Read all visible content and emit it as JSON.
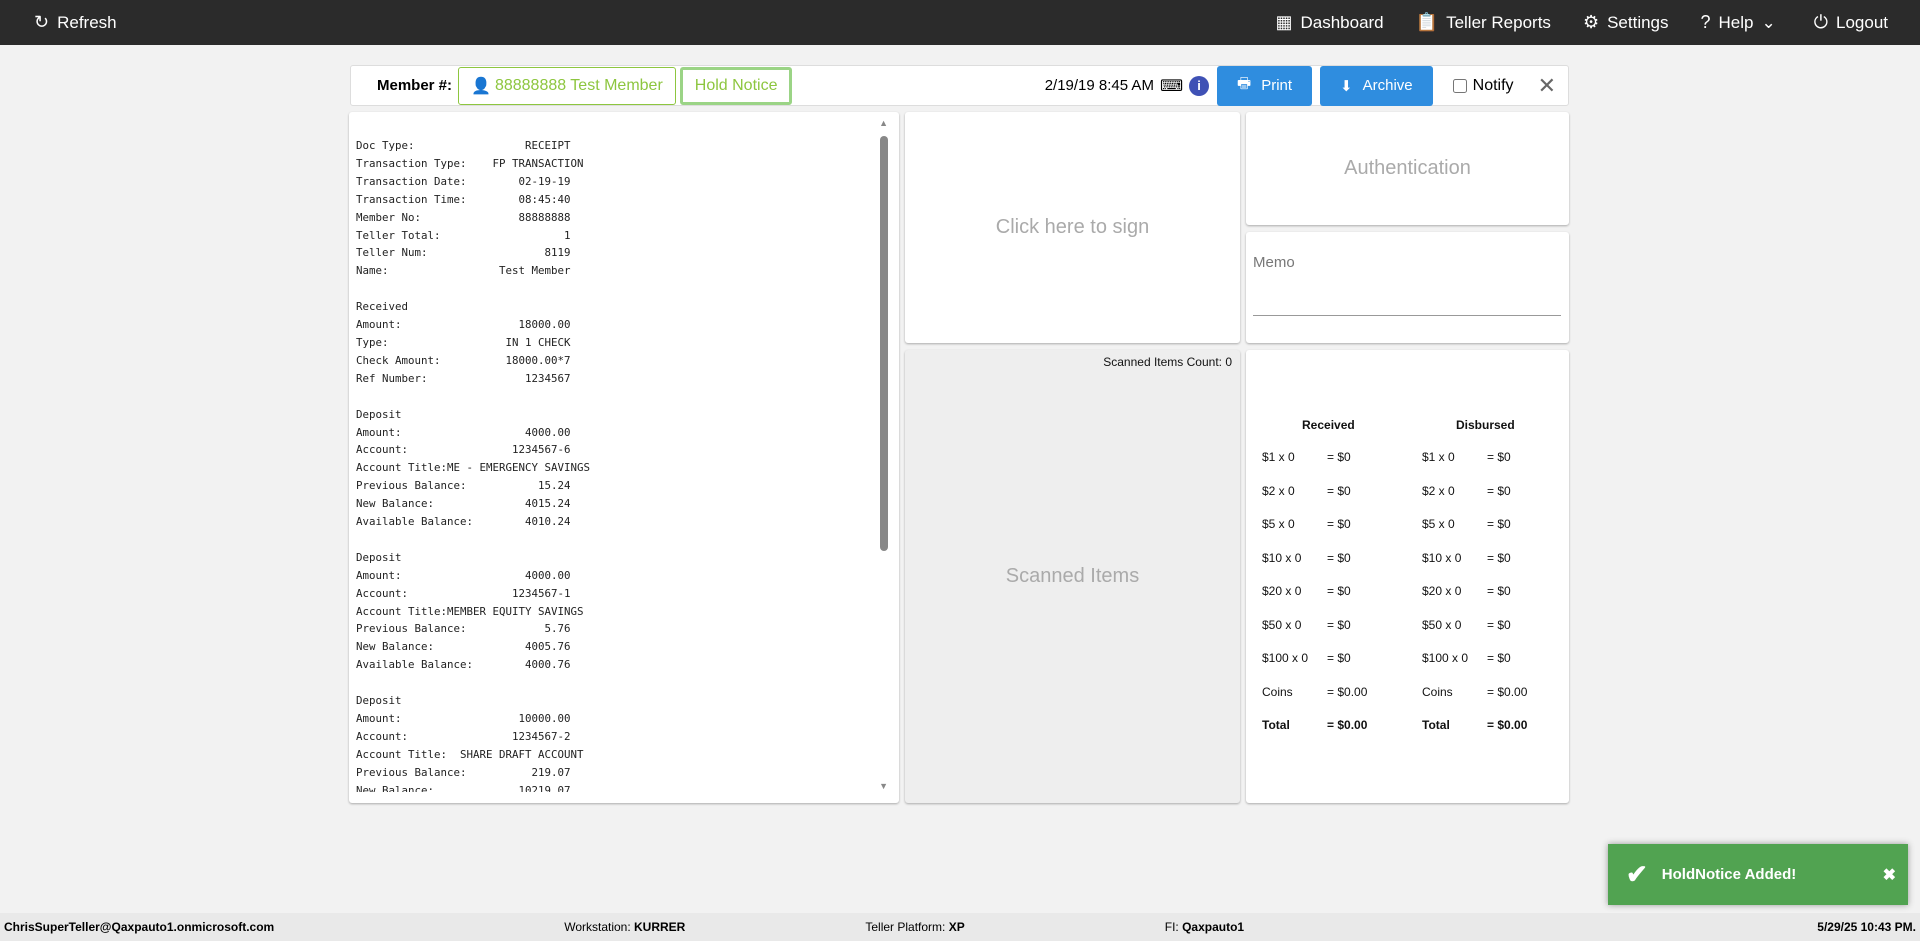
{
  "topbar": {
    "refresh": "Refresh",
    "dashboard": "Dashboard",
    "reports": "Teller Reports",
    "settings": "Settings",
    "help": "Help",
    "logout": "Logout"
  },
  "memberbar": {
    "label": "Member #:",
    "member": "88888888 Test Member",
    "hold": "Hold Notice",
    "datetime": "2/19/19 8:45 AM",
    "print": "Print",
    "archive": "Archive",
    "notify": "Notify"
  },
  "receipt": "Doc Type:                 RECEIPT\nTransaction Type:    FP TRANSACTION\nTransaction Date:        02-19-19\nTransaction Time:        08:45:40\nMember No:               88888888\nTeller Total:                   1\nTeller Num:                  8119\nName:                 Test Member\n\nReceived\nAmount:                  18000.00\nType:                  IN 1 CHECK\nCheck Amount:          18000.00*7\nRef Number:               1234567\n\nDeposit\nAmount:                   4000.00\nAccount:                1234567-6\nAccount Title:ME - EMERGENCY SAVINGS\nPrevious Balance:           15.24\nNew Balance:              4015.24\nAvailable Balance:        4010.24\n\nDeposit\nAmount:                   4000.00\nAccount:                1234567-1\nAccount Title:MEMBER EQUITY SAVINGS\nPrevious Balance:            5.76\nNew Balance:              4005.76\nAvailable Balance:        4000.76\n\nDeposit\nAmount:                  10000.00\nAccount:                1234567-2\nAccount Title:  SHARE DRAFT ACCOUNT\nPrevious Balance:          219.07\nNew Balance:             10219.07",
  "sign": "Click here to sign",
  "scanned": {
    "count": "Scanned Items Count: 0",
    "label": "Scanned Items"
  },
  "auth": "Authentication",
  "memo": "Memo",
  "cash": {
    "received": "Received",
    "disbursed": "Disbursed",
    "rows": [
      [
        "$1 x 0",
        "= $0"
      ],
      [
        "$2 x 0",
        "= $0"
      ],
      [
        "$5 x 0",
        "= $0"
      ],
      [
        "$10 x 0",
        "= $0"
      ],
      [
        "$20 x 0",
        "= $0"
      ],
      [
        "$50 x 0",
        "= $0"
      ],
      [
        "$100 x 0",
        "= $0"
      ],
      [
        "Coins",
        "= $0.00"
      ],
      [
        "Total",
        "= $0.00"
      ]
    ]
  },
  "footer": {
    "user": "ChrisSuperTeller@Qaxpauto1.onmicrosoft.com",
    "ws_label": "Workstation: ",
    "ws": "KURRER",
    "tp_label": "Teller Platform: ",
    "tp": "XP",
    "fi_label": "FI: ",
    "fi": "Qaxpauto1",
    "time": "5/29/25 10:43 PM."
  },
  "toast": "HoldNotice Added!",
  "colors": {
    "accent": "#2f8ddf",
    "member_green": "#8dc63f",
    "toast": "#51a351"
  }
}
